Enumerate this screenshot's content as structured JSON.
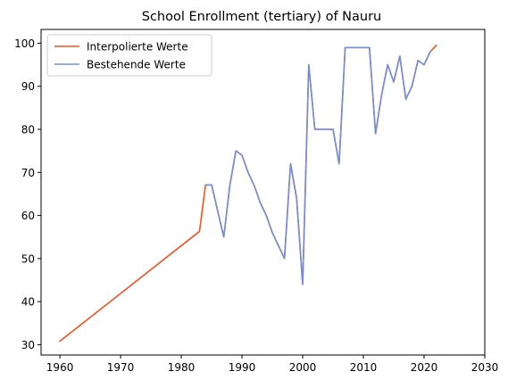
{
  "chart_data": {
    "type": "line",
    "title": "School Enrollment (tertiary) of Nauru",
    "xlabel": "",
    "ylabel": "",
    "xlim": [
      1956.9,
      2030
    ],
    "ylim": [
      27.6,
      103.2
    ],
    "xticks": [
      1960,
      1970,
      1980,
      1990,
      2000,
      2010,
      2020,
      2030
    ],
    "yticks": [
      30,
      40,
      50,
      60,
      70,
      80,
      90,
      100
    ],
    "legend_position": "upper-left",
    "series": [
      {
        "name": "Interpolierte Werte",
        "color": "#f4511e",
        "x": [
          1960,
          1983,
          1984,
          1985,
          1986,
          1987,
          1988,
          1989,
          1990,
          1991,
          1992,
          1993,
          1994,
          1995,
          1996,
          1997,
          1998,
          1999,
          2000,
          2001,
          2002,
          2003,
          2004,
          2005,
          2006,
          2007,
          2008,
          2009,
          2010,
          2011,
          2012,
          2013,
          2014,
          2015,
          2016,
          2017,
          2018,
          2019,
          2020,
          2021,
          2022
        ],
        "y": [
          30.8,
          56.3,
          67.1,
          67.1,
          61,
          55,
          67,
          75,
          74,
          70,
          67,
          63,
          60,
          56,
          53,
          50,
          72,
          64,
          44,
          95,
          80,
          80,
          80,
          80,
          72,
          99,
          99,
          99,
          99,
          99,
          79,
          88,
          95,
          91,
          97,
          87,
          90,
          96,
          95,
          98,
          99.5
        ]
      },
      {
        "name": "Bestehende Werte",
        "color": "#6f8fe0",
        "x": [
          1984,
          1985,
          1986,
          1987,
          1988,
          1989,
          1990,
          1991,
          1992,
          1993,
          1994,
          1995,
          1996,
          1997,
          1998,
          1999,
          2000,
          2001,
          2002,
          2003,
          2004,
          2005,
          2006,
          2007,
          2008,
          2009,
          2010,
          2011,
          2012,
          2013,
          2014,
          2015,
          2016,
          2017,
          2018,
          2019,
          2020,
          2021
        ],
        "y": [
          67.1,
          67.1,
          61,
          55,
          67,
          75,
          74,
          70,
          67,
          63,
          60,
          56,
          53,
          50,
          72,
          64,
          44,
          95,
          80,
          80,
          80,
          80,
          72,
          99,
          99,
          99,
          99,
          99,
          79,
          88,
          95,
          91,
          97,
          87,
          90,
          96,
          95,
          98
        ]
      }
    ]
  }
}
